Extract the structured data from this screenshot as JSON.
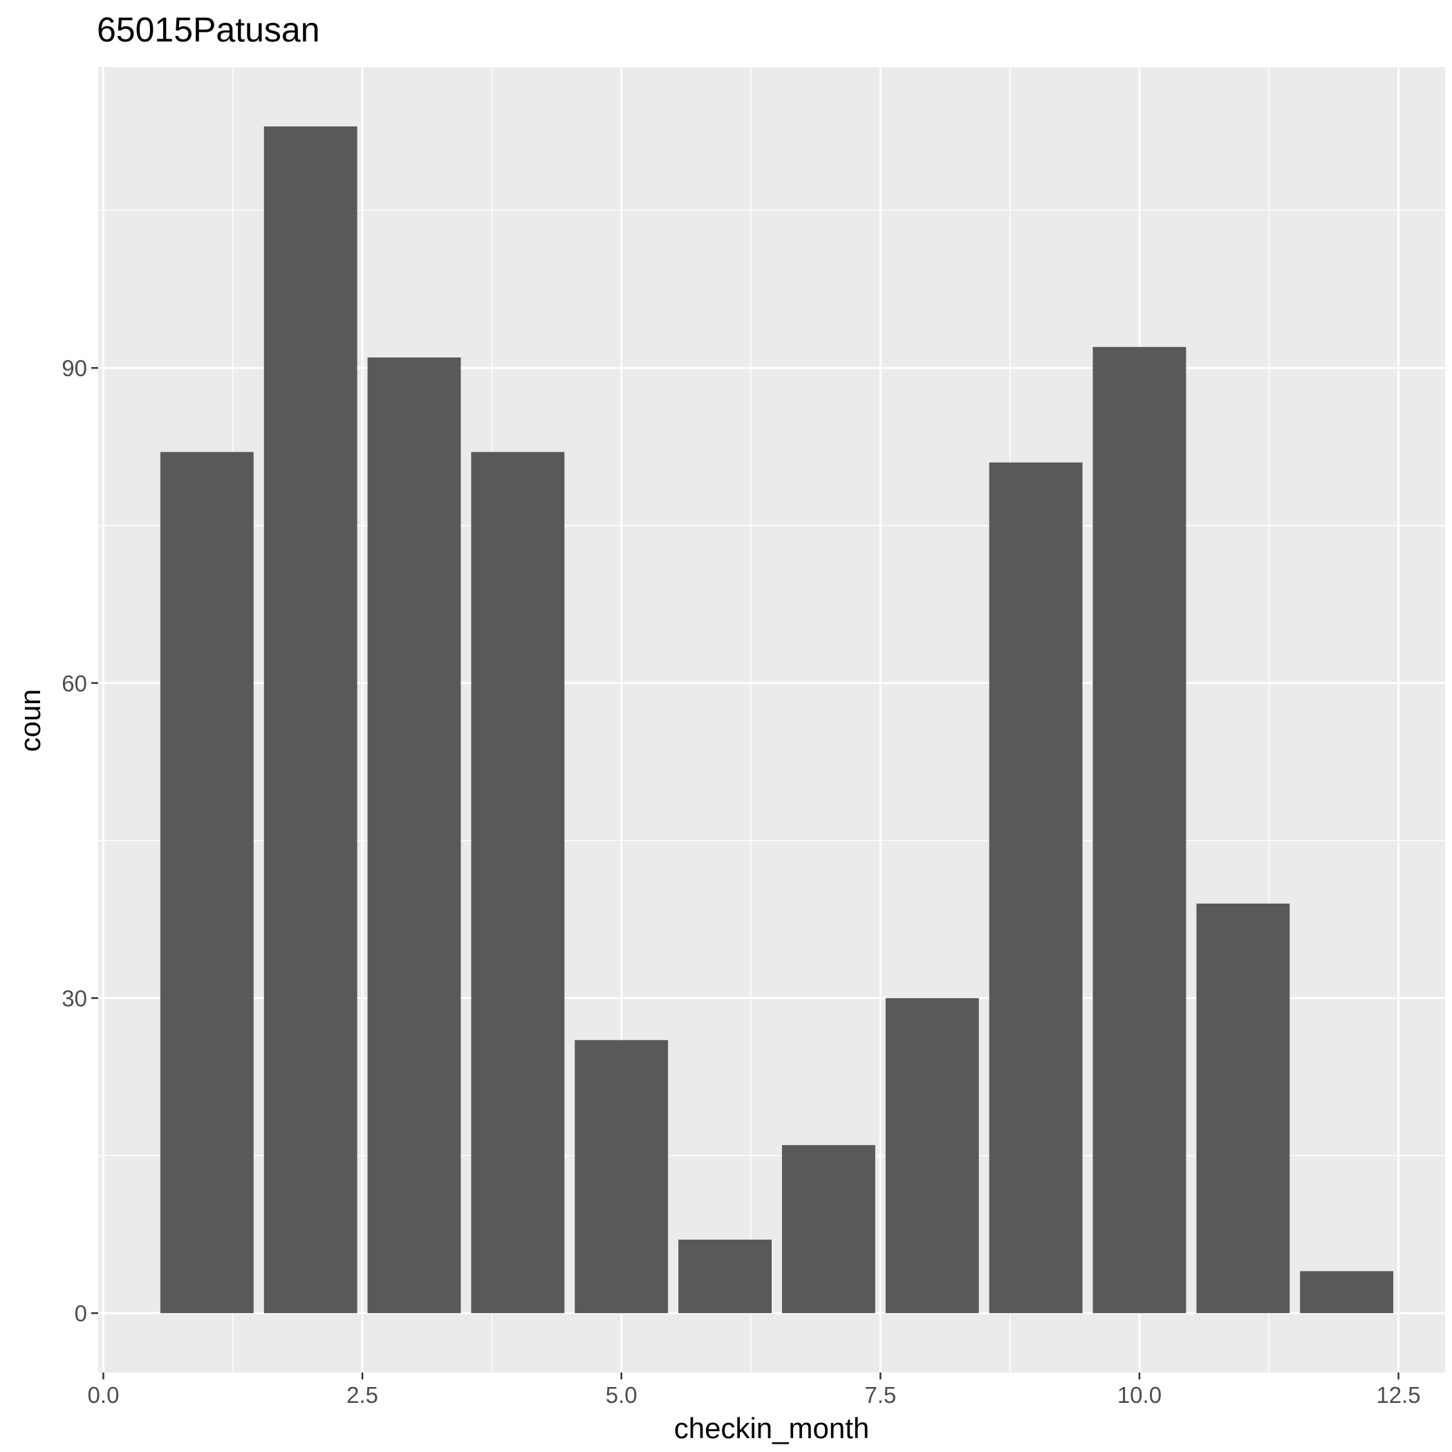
{
  "chart_data": {
    "type": "bar",
    "title": "65015Patusan",
    "xlabel": "checkin_month",
    "ylabel": "coun",
    "x": [
      1,
      2,
      3,
      4,
      5,
      6,
      7,
      8,
      9,
      10,
      11,
      12
    ],
    "values": [
      82,
      113,
      91,
      82,
      26,
      7,
      16,
      30,
      81,
      92,
      39,
      4
    ],
    "xlim": [
      -0.05,
      12.95
    ],
    "ylim": [
      -5.65,
      118.65
    ],
    "xticks": [
      0.0,
      2.5,
      5.0,
      7.5,
      10.0,
      12.5
    ],
    "xtick_labels": [
      "0.0",
      "2.5",
      "5.0",
      "7.5",
      "10.0",
      "12.5"
    ],
    "yticks": [
      0,
      30,
      60,
      90
    ],
    "ytick_labels": [
      "0",
      "30",
      "60",
      "90"
    ],
    "grid": true,
    "legend": "none",
    "colors": {
      "panel_background": "#ebebeb",
      "grid": "#ffffff",
      "bar_fill": "#595959",
      "tick_text": "#4d4d4d",
      "tick_mark": "#333333",
      "text": "#000000"
    }
  }
}
